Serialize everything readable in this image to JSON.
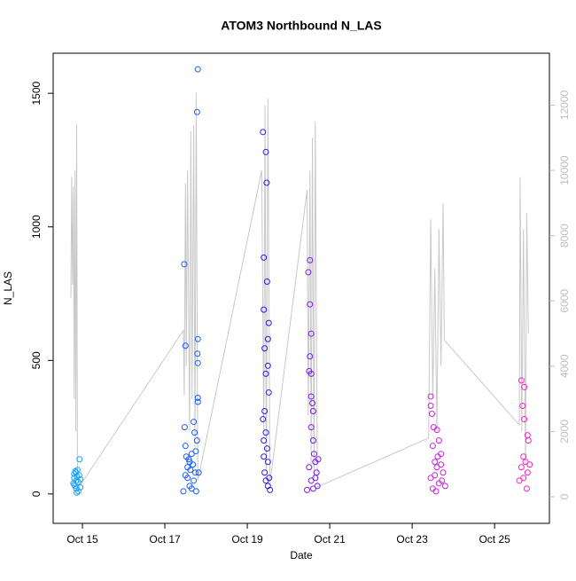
{
  "chart_data": {
    "type": "scatter",
    "title": "ATOM3 Northbound N_LAS",
    "x_label": "Date",
    "y_label": "N_LAS",
    "xlim": [
      14.29,
      26.33
    ],
    "ylim": [
      -110,
      1650
    ],
    "y2lim": [
      -815,
      13590
    ],
    "xticks": [
      {
        "value": 15,
        "label": "Oct 15"
      },
      {
        "value": 17,
        "label": "Oct 17"
      },
      {
        "value": 19,
        "label": "Oct 19"
      },
      {
        "value": 21,
        "label": "Oct 21"
      },
      {
        "value": 23,
        "label": "Oct 23"
      },
      {
        "value": 25,
        "label": "Oct 25"
      }
    ],
    "yticks": [
      0,
      500,
      1000,
      1500
    ],
    "y2ticks": [
      0,
      2000,
      4000,
      6000,
      8000,
      10000,
      12000
    ],
    "y2_color": "#bebebe",
    "series": [
      {
        "type": "line",
        "axis": "y2",
        "color": "#c8c8c8",
        "x": [
          14.72,
          14.74,
          14.76,
          14.78,
          14.8,
          14.82,
          14.84,
          14.86,
          14.88,
          14.92,
          17.45,
          17.47,
          17.5,
          17.52,
          17.55,
          17.6,
          17.63,
          17.66,
          17.7,
          17.73,
          17.76,
          17.8,
          19.35,
          19.4,
          19.43,
          19.46,
          19.5,
          19.55,
          20.45,
          20.48,
          20.52,
          20.55,
          20.58,
          20.62,
          20.65,
          20.7,
          23.4,
          23.45,
          23.5,
          23.55,
          23.6,
          23.65,
          23.7,
          23.75,
          23.78,
          25.6,
          25.62,
          25.66,
          25.7,
          25.75,
          25.78,
          25.82
        ],
        "values": [
          6100,
          9800,
          6500,
          9500,
          3000,
          10000,
          2000,
          11400,
          800,
          300,
          5100,
          3100,
          9600,
          4000,
          10000,
          2000,
          11200,
          3000,
          11400,
          1500,
          12400,
          500,
          10000,
          2000,
          12000,
          800,
          12200,
          400,
          9400,
          2500,
          10000,
          1000,
          11000,
          500,
          11500,
          300,
          1800,
          8500,
          3000,
          7000,
          2000,
          8200,
          4000,
          9000,
          4800,
          2200,
          9800,
          2000,
          8200,
          1000,
          8700,
          5000
        ]
      },
      {
        "type": "scatter",
        "color": "#1aa3ff",
        "x": [
          14.78,
          14.8,
          14.8,
          14.82,
          14.83,
          14.85,
          14.85,
          14.87,
          14.88,
          14.9,
          14.9,
          14.92,
          14.93,
          14.95,
          14.95,
          14.8,
          14.84,
          14.86
        ],
        "values": [
          40,
          60,
          75,
          30,
          85,
          50,
          20,
          65,
          90,
          45,
          10,
          70,
          130,
          55,
          25,
          35,
          80,
          5
        ]
      },
      {
        "type": "scatter",
        "color": "#1a5cff",
        "x": [
          17.45,
          17.47,
          17.5,
          17.48,
          17.5,
          17.52,
          17.55,
          17.55,
          17.6,
          17.6,
          17.62,
          17.65,
          17.65,
          17.68,
          17.7,
          17.7,
          17.72,
          17.74,
          17.75,
          17.76,
          17.78,
          17.8,
          17.8,
          17.79,
          17.8,
          17.8,
          17.8,
          17.78,
          17.82,
          17.5,
          17.58
        ],
        "values": [
          10,
          860,
          555,
          250,
          180,
          140,
          100,
          60,
          120,
          30,
          90,
          150,
          20,
          110,
          270,
          50,
          230,
          80,
          160,
          10,
          1430,
          1590,
          580,
          525,
          490,
          360,
          345,
          200,
          80,
          70,
          130
        ]
      },
      {
        "type": "scatter",
        "color": "#2a1aef",
        "x": [
          19.38,
          19.45,
          19.47,
          19.4,
          19.48,
          19.4,
          19.52,
          19.5,
          19.42,
          19.45,
          19.5,
          19.52,
          19.42,
          19.38,
          19.45,
          19.4,
          19.48,
          19.5,
          19.42,
          19.45,
          19.5,
          19.55,
          19.4,
          19.53
        ],
        "values": [
          1355,
          1280,
          1165,
          885,
          795,
          690,
          640,
          580,
          545,
          450,
          480,
          380,
          310,
          280,
          230,
          200,
          170,
          120,
          80,
          50,
          30,
          15,
          140,
          60
        ]
      },
      {
        "type": "scatter",
        "color": "#7a1aee",
        "x": [
          20.52,
          20.48,
          20.52,
          20.55,
          20.52,
          20.5,
          20.55,
          20.55,
          20.58,
          20.6,
          20.55,
          20.6,
          20.62,
          20.65,
          20.5,
          20.68,
          20.55,
          20.7,
          20.45,
          20.72,
          20.6,
          20.65
        ],
        "values": [
          875,
          830,
          710,
          600,
          515,
          460,
          450,
          365,
          340,
          310,
          250,
          200,
          150,
          120,
          100,
          80,
          50,
          30,
          15,
          130,
          20,
          60
        ]
      },
      {
        "type": "scatter",
        "color": "#cc22dd",
        "x": [
          23.45,
          23.45,
          23.48,
          23.52,
          23.6,
          23.65,
          23.5,
          23.7,
          23.55,
          23.6,
          23.75,
          23.45,
          23.65,
          23.5,
          23.55,
          23.7,
          23.8,
          23.62,
          23.58,
          23.72
        ],
        "values": [
          365,
          330,
          300,
          250,
          240,
          200,
          180,
          150,
          120,
          100,
          80,
          60,
          40,
          20,
          70,
          110,
          30,
          140,
          10,
          50
        ]
      },
      {
        "type": "scatter",
        "color": "#ff1fc8",
        "x": [
          25.65,
          25.72,
          25.68,
          25.72,
          25.8,
          25.82,
          25.7,
          25.75,
          25.65,
          25.8,
          25.6,
          25.78,
          25.7,
          25.85
        ],
        "values": [
          425,
          400,
          330,
          280,
          220,
          200,
          140,
          120,
          100,
          80,
          50,
          20,
          60,
          110
        ]
      }
    ]
  }
}
